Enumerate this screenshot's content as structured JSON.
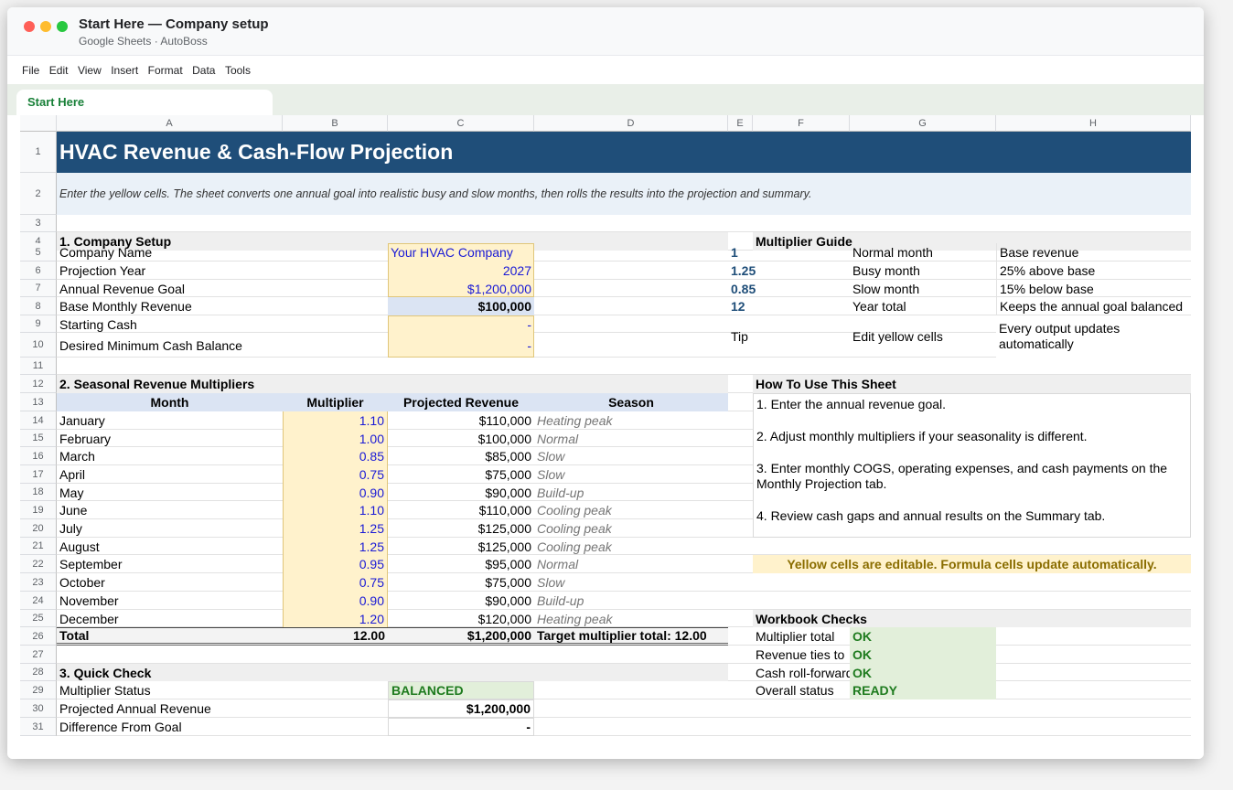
{
  "window": {
    "title": "Start Here — Company setup",
    "app": "Google Sheets",
    "separator": "·",
    "owner": "AutoBoss"
  },
  "menu": [
    "File",
    "Edit",
    "View",
    "Insert",
    "Format",
    "Data",
    "Tools"
  ],
  "sheet_tab": "Start Here",
  "columns": [
    "A",
    "B",
    "C",
    "D",
    "E",
    "F",
    "G",
    "H"
  ],
  "rows": [
    "1",
    "2",
    "3",
    "4",
    "5",
    "6",
    "7",
    "8",
    "9",
    "10",
    "11",
    "12",
    "13",
    "14",
    "15",
    "16",
    "17",
    "18",
    "19",
    "20",
    "21",
    "22",
    "23",
    "24",
    "25",
    "26",
    "27",
    "28",
    "29",
    "30",
    "31"
  ],
  "banner": {
    "title": "HVAC Revenue & Cash-Flow Projection",
    "subtitle": "Enter the yellow cells. The sheet converts one annual goal into realistic busy and slow months, then rolls the results into the projection and summary.",
    "title_bg": "#1f4e79"
  },
  "setup": {
    "header": "1. Company Setup",
    "rows": [
      {
        "label": "Company Name",
        "value": "Your HVAC Company"
      },
      {
        "label": "Projection Year",
        "value": "2027"
      },
      {
        "label": "Annual Revenue Goal",
        "value": "$1,200,000"
      },
      {
        "label": "Base Monthly Revenue",
        "value": "$100,000"
      },
      {
        "label": "Starting Cash",
        "value": "-"
      },
      {
        "label": "Desired Minimum Cash Balance",
        "value": "-"
      }
    ]
  },
  "seasonal": {
    "header": "2. Seasonal Revenue Multipliers",
    "columns": [
      "Month",
      "Multiplier",
      "Projected Revenue",
      "Season"
    ],
    "rows": [
      {
        "month": "January",
        "mult": "1.10",
        "rev": "$110,000",
        "season": "Heating peak"
      },
      {
        "month": "February",
        "mult": "1.00",
        "rev": "$100,000",
        "season": "Normal"
      },
      {
        "month": "March",
        "mult": "0.85",
        "rev": "$85,000",
        "season": "Slow"
      },
      {
        "month": "April",
        "mult": "0.75",
        "rev": "$75,000",
        "season": "Slow"
      },
      {
        "month": "May",
        "mult": "0.90",
        "rev": "$90,000",
        "season": "Build-up"
      },
      {
        "month": "June",
        "mult": "1.10",
        "rev": "$110,000",
        "season": "Cooling peak"
      },
      {
        "month": "July",
        "mult": "1.25",
        "rev": "$125,000",
        "season": "Cooling peak"
      },
      {
        "month": "August",
        "mult": "1.25",
        "rev": "$125,000",
        "season": "Cooling peak"
      },
      {
        "month": "September",
        "mult": "0.95",
        "rev": "$95,000",
        "season": "Normal"
      },
      {
        "month": "October",
        "mult": "0.75",
        "rev": "$75,000",
        "season": "Slow"
      },
      {
        "month": "November",
        "mult": "0.90",
        "rev": "$90,000",
        "season": "Build-up"
      },
      {
        "month": "December",
        "mult": "1.20",
        "rev": "$120,000",
        "season": "Heating peak"
      }
    ],
    "total": {
      "label": "Total",
      "mult": "12.00",
      "rev": "$1,200,000",
      "note": "Target multiplier total: 12.00"
    }
  },
  "quick": {
    "header": "3. Quick Check",
    "rows": [
      {
        "label": "Multiplier Status",
        "value": "BALANCED"
      },
      {
        "label": "Projected Annual Revenue",
        "value": "$1,200,000"
      },
      {
        "label": "Difference From Goal",
        "value": "-"
      }
    ]
  },
  "guide": {
    "header": "Multiplier Guide",
    "rows": [
      {
        "k": "1",
        "name": "Normal month",
        "desc": "Base revenue"
      },
      {
        "k": "1.25",
        "name": "Busy month",
        "desc": "25% above base"
      },
      {
        "k": "0.85",
        "name": "Slow month",
        "desc": "15% below base"
      },
      {
        "k": "12",
        "name": "Year total",
        "desc": "Keeps the annual goal balanced"
      }
    ],
    "tip": {
      "k": "Tip",
      "name": "Edit yellow cells",
      "desc1": "Every output updates",
      "desc2": "automatically"
    }
  },
  "howto": {
    "header": "How To Use This Sheet",
    "steps": [
      "1. Enter the annual revenue goal.",
      "2. Adjust monthly multipliers if your seasonality is different.",
      "3. Enter monthly COGS, operating expenses, and cash payments on the",
      "Monthly Projection tab.",
      "4. Review cash gaps and annual results on the Summary tab."
    ]
  },
  "note": "Yellow cells are editable. Formula cells update automatically.",
  "checks": {
    "header": "Workbook Checks",
    "rows": [
      {
        "label": "Multiplier total",
        "value": "OK"
      },
      {
        "label": "Revenue ties to",
        "value": "OK"
      },
      {
        "label": "Cash roll-forward",
        "value": "OK"
      },
      {
        "label": "Overall status",
        "value": "READY"
      }
    ]
  }
}
